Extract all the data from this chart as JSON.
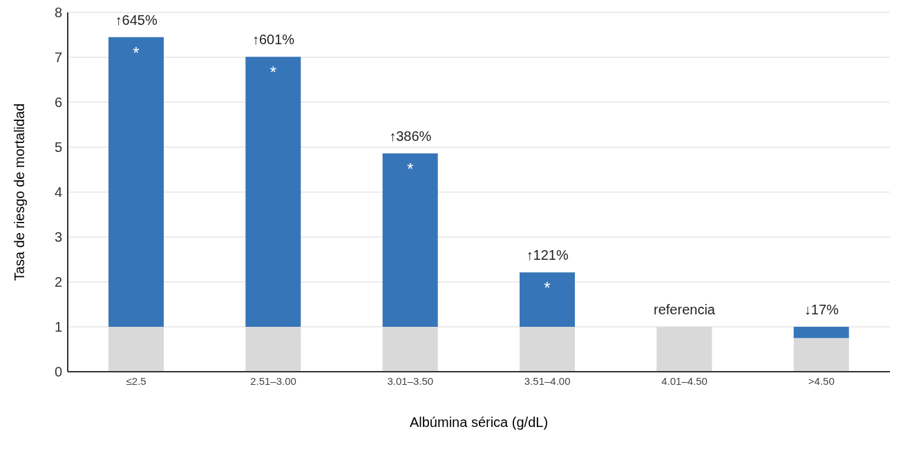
{
  "chart_data": {
    "type": "bar",
    "stacked": true,
    "xlabel": "Albúmina sérica (g/dL)",
    "ylabel": "Tasa de riesgo de mortalidad",
    "categories": [
      "≤2.5",
      "2.51–3.00",
      "3.01–3.50",
      "3.51–4.00",
      "4.01–4.50",
      ">4.50"
    ],
    "series": [
      {
        "color": "#d9d9d9",
        "values": [
          1,
          1,
          1,
          1,
          1,
          0.75
        ]
      },
      {
        "color": "#3775b9",
        "values": [
          6.45,
          6.01,
          3.86,
          1.21,
          0,
          0.25
        ],
        "value_labels": [
          "*",
          "*",
          "*",
          "*",
          null,
          null
        ]
      }
    ],
    "ylim": [
      0,
      8
    ],
    "yticks": [
      0,
      1,
      2,
      3,
      4,
      5,
      6,
      7,
      8
    ],
    "grid": "y",
    "legend": false,
    "annotations": [
      {
        "text": "↑645%",
        "x": "≤2.5",
        "y": 7.45
      },
      {
        "text": "↑601%",
        "x": "2.51–3.00",
        "y": 7.01
      },
      {
        "text": "↑386%",
        "x": "3.01–3.50",
        "y": 4.86
      },
      {
        "text": "↑121%",
        "x": "3.51–4.00",
        "y": 2.21
      },
      {
        "text": "referencia",
        "x": "4.01–4.50",
        "y": 1
      },
      {
        "text": "↓17%",
        "x": ">4.50",
        "y": 1
      }
    ]
  }
}
